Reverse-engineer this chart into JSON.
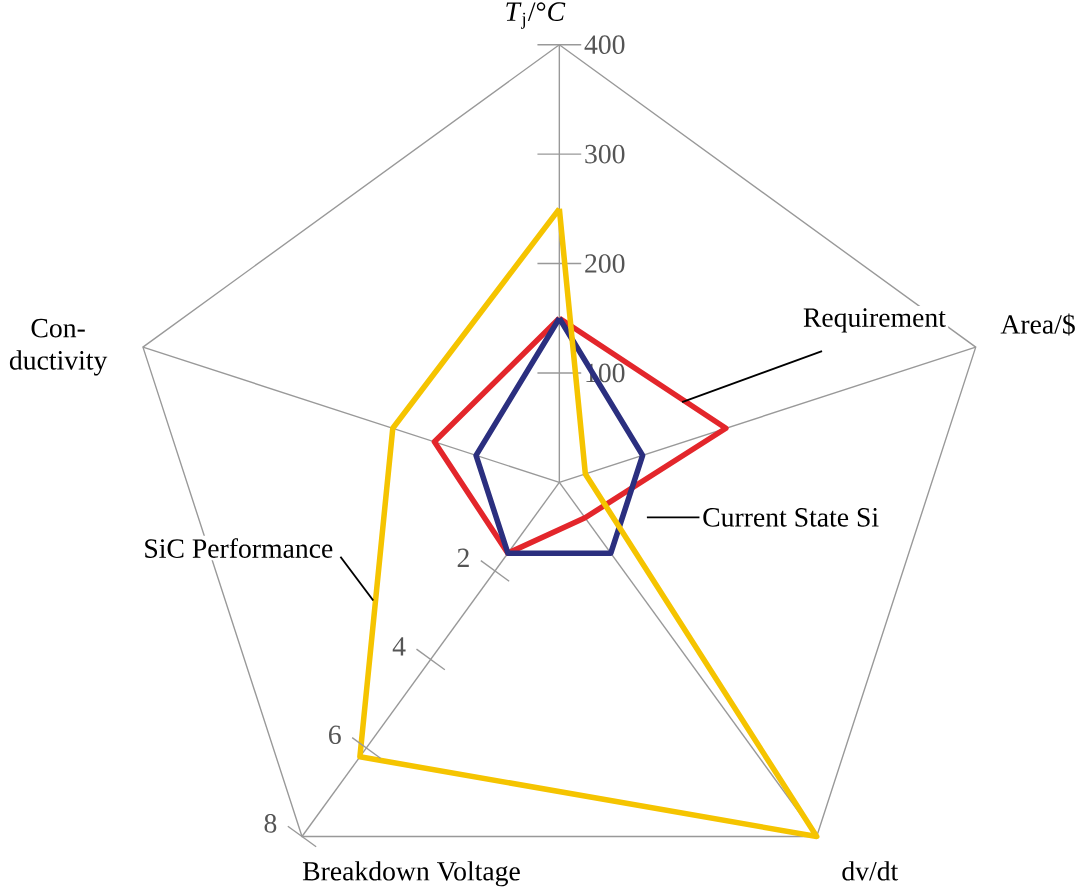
{
  "chart_data": {
    "type": "radar",
    "categories": [
      "*T*$_{j}$/°*C*",
      "Area/$",
      "dv/dt",
      "Breakdown Voltage",
      "Con- ductivity"
    ],
    "ylim": [
      0,
      400
    ],
    "yticks": [
      100,
      200,
      300,
      400
    ],
    "annotations": [
      "2",
      "4",
      "6",
      "8"
    ],
    "series": [
      {
        "name": "Requirement",
        "color": "#e3262b",
        "values": [
          150,
          160,
          40,
          80,
          120
        ]
      },
      {
        "name": "Current State Si",
        "color": "#2b2f7f",
        "values": [
          150,
          80,
          80,
          80,
          80
        ]
      },
      {
        "name": "SiC Performance",
        "color": "#f5c400",
        "values": [
          250,
          25,
          400,
          310,
          160
        ]
      }
    ]
  }
}
